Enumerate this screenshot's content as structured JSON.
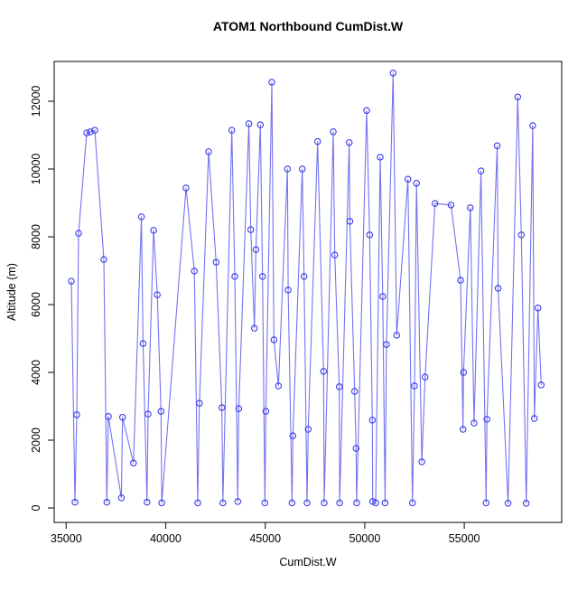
{
  "title": "ATOM1 Northbound CumDist.W",
  "x_label": "CumDist.W",
  "y_label": "Altitude (m)",
  "chart_data": {
    "type": "line",
    "title": "ATOM1 Northbound CumDist.W",
    "xlabel": "CumDist.W",
    "ylabel": "Altitude (m)",
    "legend": "none",
    "grid": false,
    "marker": "open-circle",
    "line_color": "#7373f2",
    "point_color": "#3a3ae8",
    "axis_color": "#2b2b2b",
    "x_ticks": [
      35000,
      40000,
      45000,
      50000,
      55000
    ],
    "y_ticks": [
      0,
      2000,
      4000,
      6000,
      8000,
      10000,
      12000
    ],
    "xlim": [
      34400,
      59880
    ],
    "ylim": [
      -430,
      13170
    ],
    "points": [
      [
        35260,
        6690
      ],
      [
        35440,
        170
      ],
      [
        35530,
        2750
      ],
      [
        35620,
        8105
      ],
      [
        36030,
        11065
      ],
      [
        36210,
        11095
      ],
      [
        36440,
        11145
      ],
      [
        36890,
        7330
      ],
      [
        37040,
        170
      ],
      [
        37120,
        2700
      ],
      [
        37770,
        300
      ],
      [
        37830,
        2675
      ],
      [
        38380,
        1325
      ],
      [
        38780,
        8590
      ],
      [
        38860,
        4850
      ],
      [
        39060,
        170
      ],
      [
        39115,
        2770
      ],
      [
        39390,
        8190
      ],
      [
        39580,
        6290
      ],
      [
        39765,
        2850
      ],
      [
        39800,
        150
      ],
      [
        41020,
        9440
      ],
      [
        41440,
        6990
      ],
      [
        41610,
        150
      ],
      [
        41690,
        3090
      ],
      [
        42155,
        10510
      ],
      [
        42530,
        7250
      ],
      [
        42820,
        2960
      ],
      [
        42870,
        150
      ],
      [
        43320,
        11145
      ],
      [
        43470,
        6830
      ],
      [
        43620,
        190
      ],
      [
        43670,
        2930
      ],
      [
        44180,
        11335
      ],
      [
        44275,
        8210
      ],
      [
        44455,
        5305
      ],
      [
        44530,
        7625
      ],
      [
        44755,
        11305
      ],
      [
        44865,
        6830
      ],
      [
        44980,
        150
      ],
      [
        45030,
        2850
      ],
      [
        45330,
        12560
      ],
      [
        45435,
        4960
      ],
      [
        45660,
        3600
      ],
      [
        46115,
        10000
      ],
      [
        46150,
        6430
      ],
      [
        46345,
        150
      ],
      [
        46390,
        2130
      ],
      [
        46860,
        10000
      ],
      [
        46950,
        6830
      ],
      [
        47100,
        150
      ],
      [
        47160,
        2320
      ],
      [
        47630,
        10810
      ],
      [
        47930,
        4030
      ],
      [
        47960,
        150
      ],
      [
        48415,
        11100
      ],
      [
        48495,
        7465
      ],
      [
        48720,
        3575
      ],
      [
        48740,
        150
      ],
      [
        49220,
        10780
      ],
      [
        49250,
        8455
      ],
      [
        49490,
        3440
      ],
      [
        49565,
        1760
      ],
      [
        49590,
        150
      ],
      [
        50095,
        11725
      ],
      [
        50245,
        8055
      ],
      [
        50380,
        2590
      ],
      [
        50400,
        190
      ],
      [
        50550,
        150
      ],
      [
        50775,
        10350
      ],
      [
        50900,
        6240
      ],
      [
        51020,
        150
      ],
      [
        51090,
        4825
      ],
      [
        51425,
        12830
      ],
      [
        51605,
        5095
      ],
      [
        52170,
        9700
      ],
      [
        52395,
        150
      ],
      [
        52500,
        3600
      ],
      [
        52600,
        9580
      ],
      [
        52865,
        1360
      ],
      [
        53030,
        3865
      ],
      [
        53530,
        8985
      ],
      [
        54330,
        8935
      ],
      [
        54815,
        6720
      ],
      [
        54935,
        2320
      ],
      [
        54965,
        4000
      ],
      [
        55305,
        8855
      ],
      [
        55490,
        2505
      ],
      [
        55840,
        9945
      ],
      [
        56095,
        150
      ],
      [
        56140,
        2615
      ],
      [
        56655,
        10685
      ],
      [
        56700,
        6480
      ],
      [
        57200,
        140
      ],
      [
        57685,
        12125
      ],
      [
        57865,
        8055
      ],
      [
        58110,
        140
      ],
      [
        58440,
        11280
      ],
      [
        58520,
        2640
      ],
      [
        58700,
        5900
      ],
      [
        58865,
        3630
      ]
    ]
  }
}
